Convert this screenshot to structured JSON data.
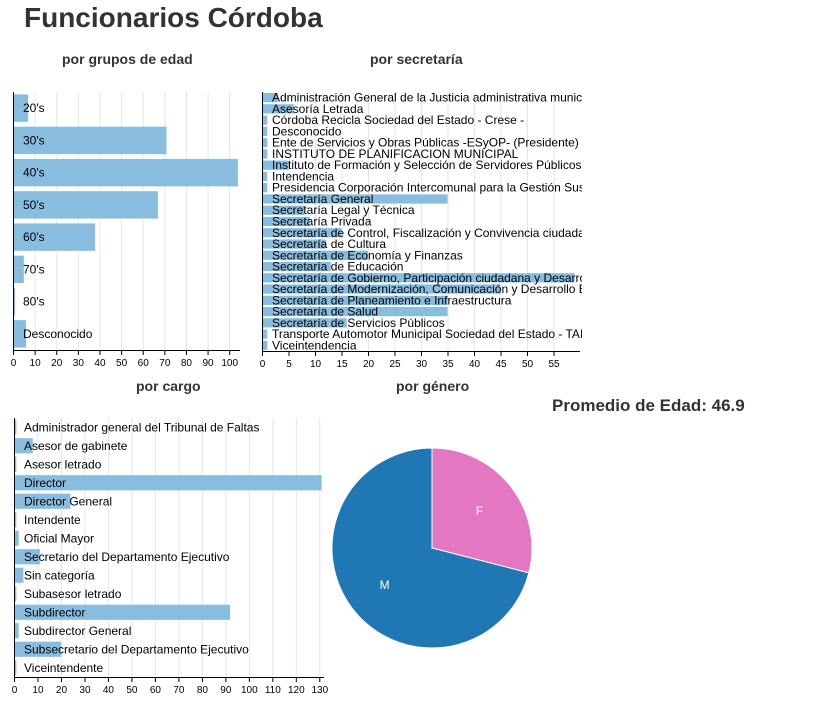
{
  "title": "Funcionarios Córdoba",
  "average_age_label": "Promedio de Edad: 46.9",
  "colors": {
    "bar": "#88bde0",
    "pie_M": "#1f77b4",
    "pie_F": "#e377c2"
  },
  "chart_data": [
    {
      "id": "edad",
      "type": "bar",
      "orientation": "horizontal",
      "title": "por grupos de edad",
      "categories": [
        "20's",
        "30's",
        "40's",
        "50's",
        "60's",
        "70's",
        "80's",
        "Desconocido"
      ],
      "values": [
        7,
        71,
        104,
        67,
        38,
        5,
        1,
        6
      ],
      "xlim": [
        0,
        105
      ],
      "ticks": [
        0,
        10,
        20,
        30,
        40,
        50,
        60,
        70,
        80,
        90,
        100
      ]
    },
    {
      "id": "secretaria",
      "type": "bar",
      "orientation": "horizontal",
      "title": "por secretaría",
      "categories": [
        "Administración General de la Justicia administrativa munic",
        "Asesoría Letrada",
        "Córdoba Recicla Sociedad del Estado - Crese -",
        "Desconocido",
        "Ente de Servicios y Obras Públicas -ESyOP- (Presidente)",
        "INSTITUTO DE PLANIFICACION MUNICIPAL",
        "Instituto de Formación y Selección de Servidores Públicos",
        "Intendencia",
        "Presidencia Corporación Intercomunal para la Gestión Sus",
        "Secretaría General",
        "Secretaría Legal y Técnica",
        "Secretaría Privada",
        "Secretaría de Control, Fiscalización y Convivencia ciudada",
        "Secretaría de Cultura",
        "Secretaría de Economía y Finanzas",
        "Secretaría de Educación",
        "Secretaría de Gobierno, Participación ciudadana y Desarro",
        "Secretaría de Modernización, Comunicación y Desarrollo E",
        "Secretaría de Planeamiento e Infraestructura",
        "Secretaría de Salud",
        "Secretaría de Servicios Públicos",
        "Transporte Automotor Municipal Sociedad del Estado - TAI",
        "Viceintendencia"
      ],
      "values": [
        3,
        6,
        1,
        1,
        1,
        1,
        5,
        1,
        1,
        35,
        8,
        9,
        15,
        12,
        20,
        13,
        59,
        45,
        35,
        35,
        16,
        1,
        1
      ],
      "xlim": [
        0,
        60
      ],
      "ticks": [
        0,
        5,
        10,
        15,
        20,
        25,
        30,
        35,
        40,
        45,
        50,
        55
      ]
    },
    {
      "id": "cargo",
      "type": "bar",
      "orientation": "horizontal",
      "title": "por cargo",
      "categories": [
        "Administrador general del Tribunal de Faltas",
        "Asesor de gabinete",
        "Asesor letrado",
        "Director",
        "Director General",
        "Intendente",
        "Oficial Mayor",
        "Secretario del Departamento Ejecutivo",
        "Sin categoría",
        "Subasesor letrado",
        "Subdirector",
        "Subdirector General",
        "Subsecretario del Departamento Ejecutivo",
        "Viceintendente"
      ],
      "values": [
        1,
        8,
        1,
        131,
        24,
        1,
        2,
        11,
        4,
        1,
        92,
        2,
        20,
        1
      ],
      "xlim": [
        0,
        132
      ],
      "ticks": [
        0,
        10,
        20,
        30,
        40,
        50,
        60,
        70,
        80,
        90,
        100,
        110,
        120,
        130
      ]
    },
    {
      "id": "genero",
      "type": "pie",
      "title": "por género",
      "slices": [
        {
          "label": "F",
          "value": 29
        },
        {
          "label": "M",
          "value": 71
        }
      ]
    }
  ]
}
